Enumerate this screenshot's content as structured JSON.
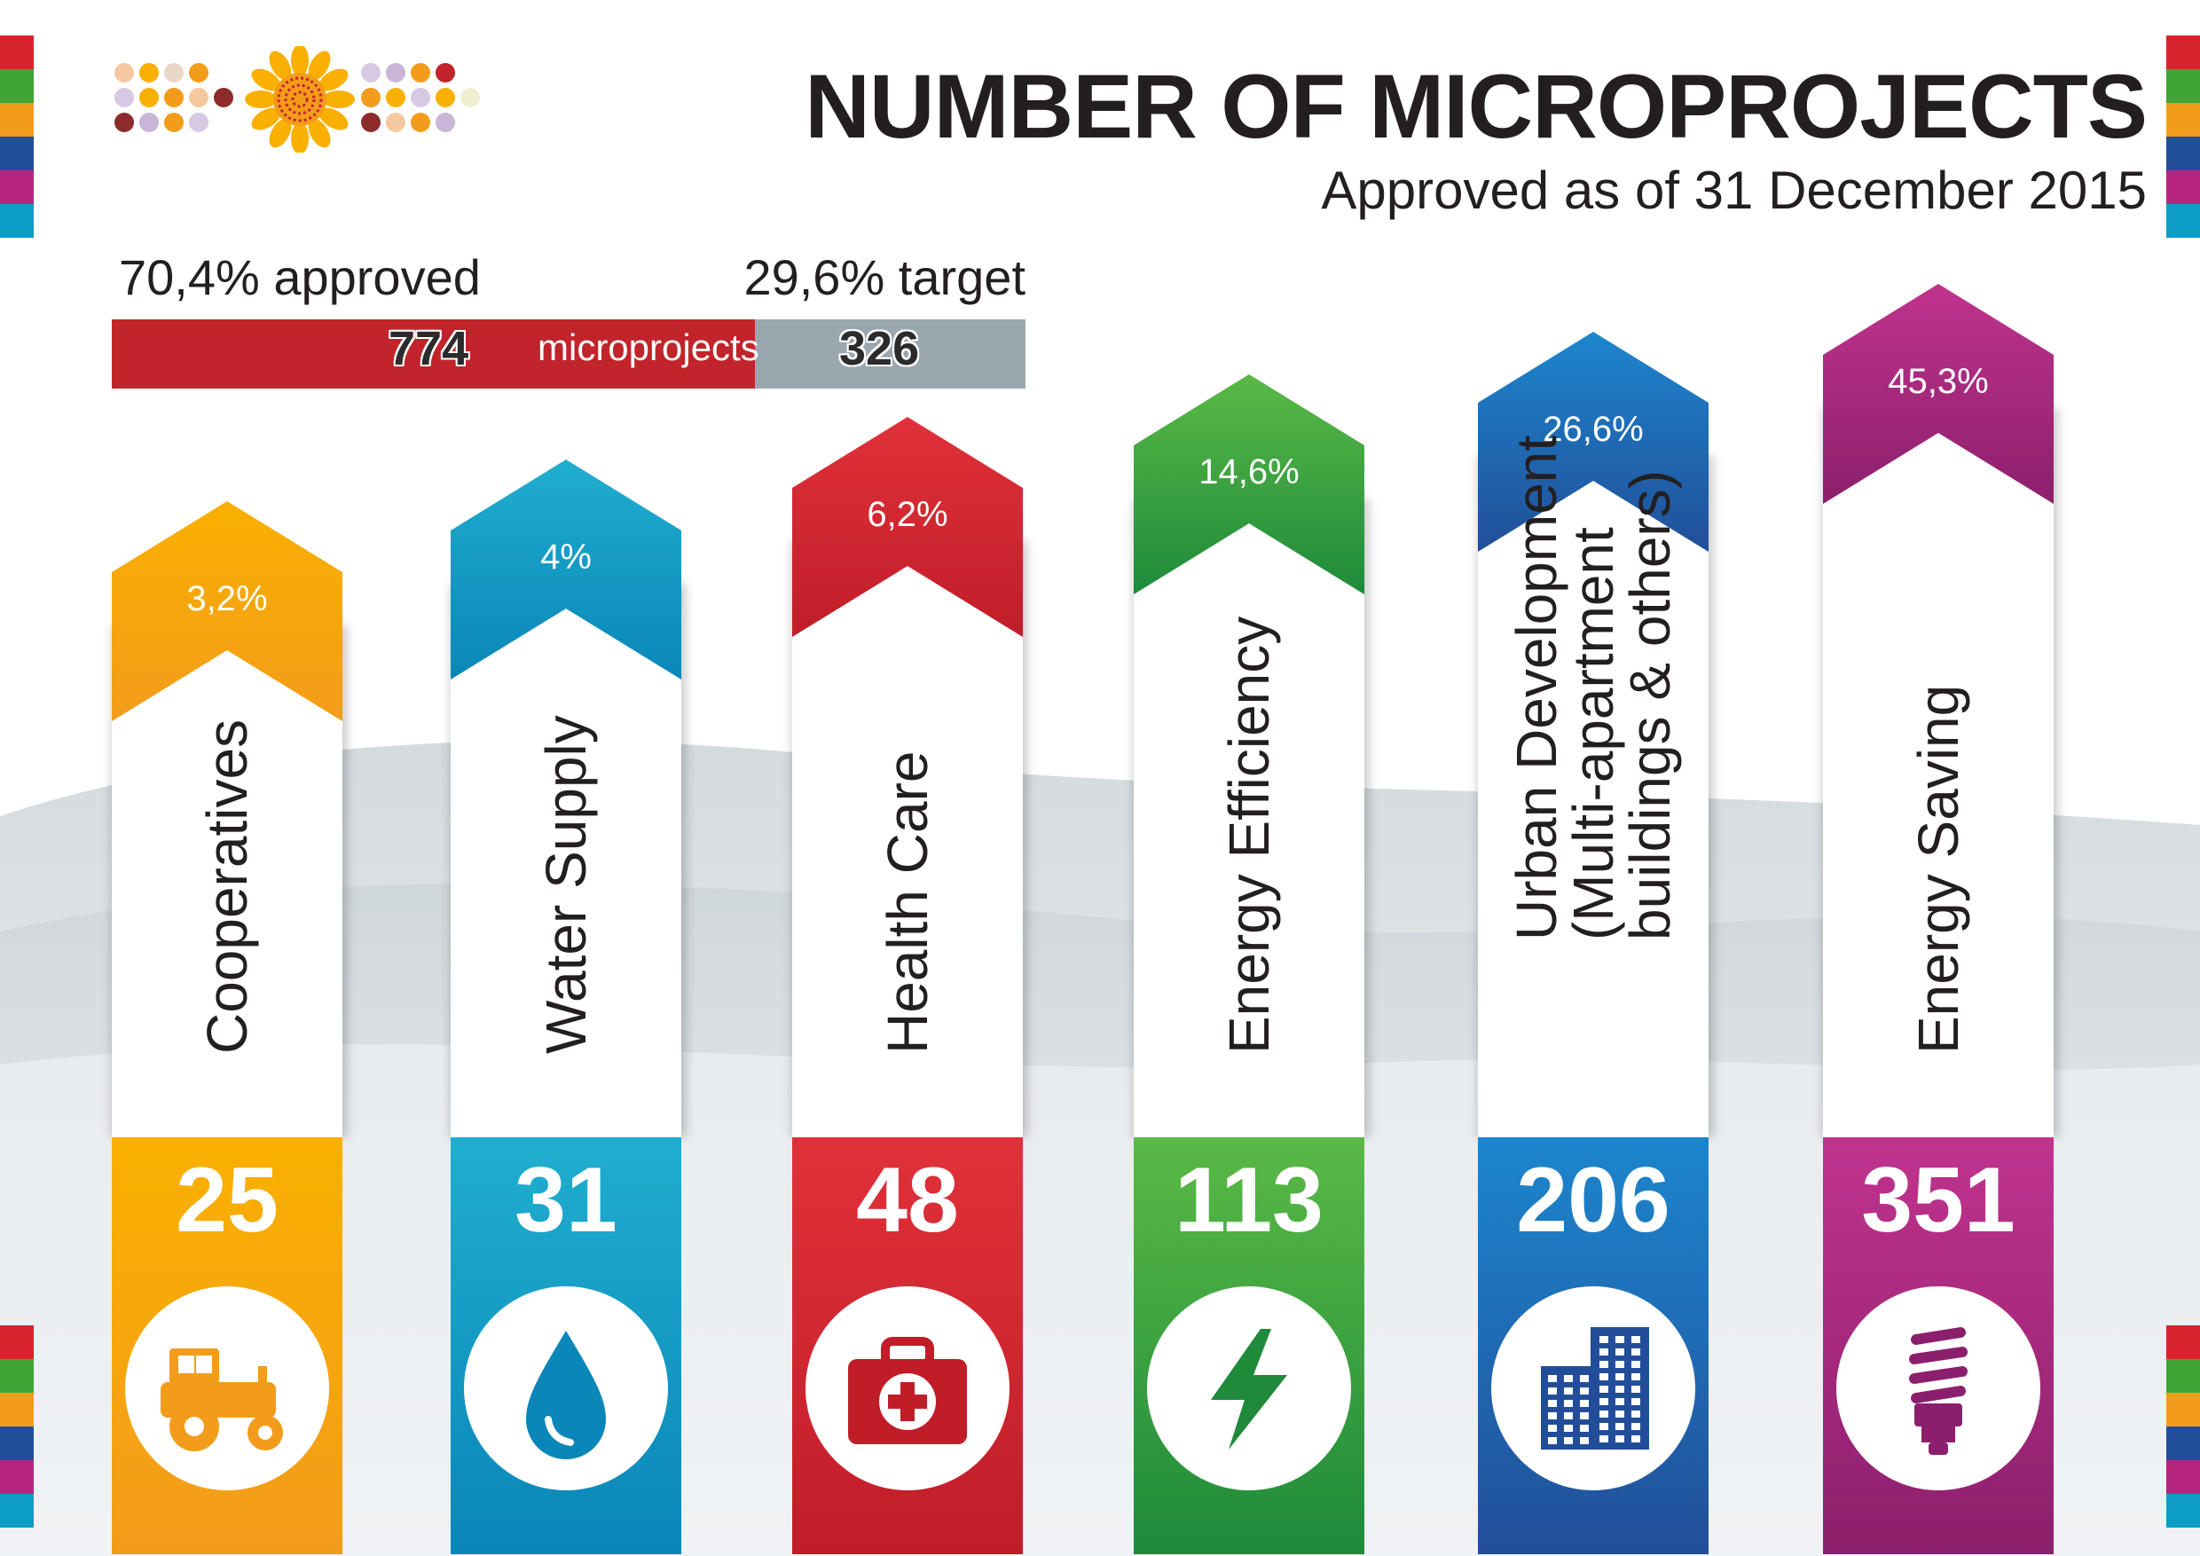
{
  "title": "NUMBER OF MICROPROJECTS",
  "subtitle": "Approved as of 31 December 2015",
  "summary": {
    "approved_label": "70,4% approved",
    "target_label": "29,6% target",
    "approved_count": "774",
    "target_count": "326",
    "unit_label": "microprojects",
    "approved_fraction": 0.704
  },
  "colors": {
    "approved": "#c1242a",
    "target": "#9ba7ae",
    "cooperatives": "#f9b000",
    "water_supply": "#0d9cc6",
    "health_care": "#d8232f",
    "energy_efficiency": "#3fa535",
    "urban_development": "#1b6fb5",
    "energy_saving": "#b5257f"
  },
  "chart_data": {
    "type": "bar",
    "categories": [
      "Cooperatives",
      "Water Supply",
      "Health Care",
      "Energy Efficiency",
      "Urban Development (Multi-apartment buildings & others)",
      "Energy Saving"
    ],
    "values": [
      25,
      31,
      48,
      113,
      206,
      351
    ],
    "percentages": [
      "3,2%",
      "4%",
      "6,2%",
      "14,6%",
      "26,6%",
      "45,3%"
    ],
    "title": "NUMBER OF MICROPROJECTS",
    "subtitle": "Approved as of 31 December 2015"
  },
  "columns": [
    {
      "id": "cooperatives",
      "label_lines": [
        "Cooperatives"
      ],
      "count": "25",
      "pct": "3,2%",
      "icon": "tractor-icon",
      "top": "#f9b000",
      "bottom": "#f39c1b"
    },
    {
      "id": "water-supply",
      "label_lines": [
        "Water Supply"
      ],
      "count": "31",
      "pct": "4%",
      "icon": "water-drop-icon",
      "top": "#20aecf",
      "bottom": "#0a86b8"
    },
    {
      "id": "health-care",
      "label_lines": [
        "Health Care"
      ],
      "count": "48",
      "pct": "6,2%",
      "icon": "first-aid-kit-icon",
      "top": "#e0313a",
      "bottom": "#c01d28"
    },
    {
      "id": "energy-efficiency",
      "label_lines": [
        "Energy Efficiency"
      ],
      "count": "113",
      "pct": "14,6%",
      "icon": "lightning-bolt-icon",
      "top": "#5ab946",
      "bottom": "#1e8a3a"
    },
    {
      "id": "urban-development",
      "label_lines": [
        "Urban Development",
        "(Multi-apartment",
        "buildings & others)"
      ],
      "count": "206",
      "pct": "26,6%",
      "icon": "buildings-icon",
      "top": "#1c86cd",
      "bottom": "#224e99"
    },
    {
      "id": "energy-saving",
      "label_lines": [
        "Energy Saving"
      ],
      "count": "351",
      "pct": "45,3%",
      "icon": "cfl-bulb-icon",
      "top": "#c0338e",
      "bottom": "#8c1f6d"
    }
  ]
}
